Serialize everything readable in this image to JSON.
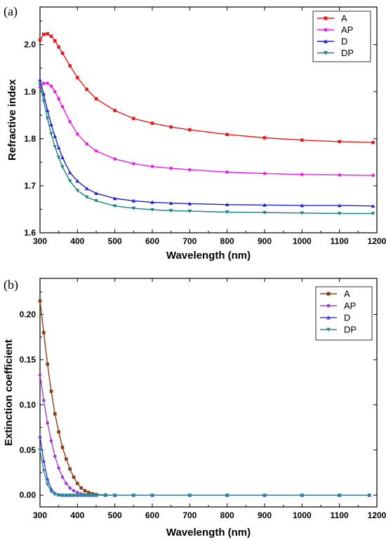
{
  "chart_data": [
    {
      "panel_label": "(a)",
      "type": "line",
      "xlabel": "Wavelength (nm)",
      "ylabel": "Refractive index",
      "xlim": [
        300,
        1200
      ],
      "ylim": [
        1.6,
        2.08
      ],
      "xticks": [
        300,
        400,
        500,
        600,
        700,
        800,
        900,
        1000,
        1100,
        1200
      ],
      "yticks": [
        1.6,
        1.7,
        1.8,
        1.9,
        2.0
      ],
      "yticks_labels": [
        "1.6",
        "1.7",
        "1.8",
        "1.9",
        "2.0"
      ],
      "grid": false,
      "legend_position": "top-right",
      "x": [
        300,
        310,
        320,
        330,
        340,
        350,
        360,
        380,
        400,
        425,
        450,
        500,
        550,
        600,
        650,
        700,
        800,
        900,
        1000,
        1100,
        1190
      ],
      "series": [
        {
          "name": "A",
          "color": "#e8191a",
          "marker": "square",
          "values": [
            2.01,
            2.022,
            2.023,
            2.018,
            2.008,
            1.995,
            1.982,
            1.955,
            1.93,
            1.905,
            1.885,
            1.86,
            1.843,
            1.833,
            1.825,
            1.819,
            1.809,
            1.802,
            1.797,
            1.794,
            1.792
          ]
        },
        {
          "name": "AP",
          "color": "#e81ee8",
          "marker": "circle",
          "values": [
            1.91,
            1.918,
            1.918,
            1.912,
            1.9,
            1.885,
            1.868,
            1.836,
            1.81,
            1.789,
            1.774,
            1.757,
            1.747,
            1.741,
            1.737,
            1.734,
            1.729,
            1.726,
            1.724,
            1.723,
            1.722
          ]
        },
        {
          "name": "D",
          "color": "#1f22c8",
          "marker": "triangle-up",
          "values": [
            1.925,
            1.895,
            1.86,
            1.83,
            1.805,
            1.781,
            1.76,
            1.728,
            1.71,
            1.694,
            1.684,
            1.673,
            1.668,
            1.665,
            1.663,
            1.662,
            1.66,
            1.659,
            1.658,
            1.658,
            1.657
          ]
        },
        {
          "name": "DP",
          "color": "#1a8080",
          "marker": "triangle-down",
          "values": [
            1.915,
            1.88,
            1.843,
            1.81,
            1.783,
            1.76,
            1.74,
            1.71,
            1.69,
            1.676,
            1.668,
            1.657,
            1.652,
            1.649,
            1.647,
            1.646,
            1.644,
            1.643,
            1.642,
            1.641,
            1.641
          ]
        }
      ]
    },
    {
      "panel_label": "(b)",
      "type": "line",
      "xlabel": "Wavelength (nm)",
      "ylabel": "Extinction coefficient",
      "xlim": [
        300,
        1200
      ],
      "ylim": [
        -0.013,
        0.24
      ],
      "xticks": [
        300,
        400,
        500,
        600,
        700,
        800,
        900,
        1000,
        1100,
        1200
      ],
      "yticks": [
        0.0,
        0.05,
        0.1,
        0.15,
        0.2
      ],
      "yticks_labels": [
        "0.00",
        "0.05",
        "0.10",
        "0.15",
        "0.20"
      ],
      "grid": false,
      "legend_position": "top-right",
      "x": [
        300,
        310,
        320,
        330,
        340,
        350,
        360,
        370,
        380,
        390,
        400,
        410,
        420,
        430,
        440,
        450,
        475,
        500,
        550,
        600,
        700,
        800,
        900,
        1000,
        1100,
        1180
      ],
      "series": [
        {
          "name": "A",
          "color": "#8b3a1a",
          "marker": "square",
          "values": [
            0.215,
            0.18,
            0.145,
            0.115,
            0.09,
            0.07,
            0.053,
            0.04,
            0.029,
            0.02,
            0.013,
            0.008,
            0.005,
            0.003,
            0.0015,
            0.0007,
            0.0002,
            0,
            0,
            0,
            0,
            0,
            0,
            0,
            0,
            0
          ]
        },
        {
          "name": "AP",
          "color": "#a23bd6",
          "marker": "circle",
          "values": [
            0.133,
            0.105,
            0.08,
            0.06,
            0.043,
            0.03,
            0.02,
            0.013,
            0.008,
            0.005,
            0.003,
            0.0015,
            0.0008,
            0.0003,
            0.0001,
            0,
            0,
            0,
            0,
            0,
            0,
            0,
            0,
            0,
            0,
            0
          ]
        },
        {
          "name": "D",
          "color": "#3b3be0",
          "marker": "triangle-up",
          "values": [
            0.065,
            0.038,
            0.018,
            0.007,
            0.002,
            0.0005,
            0,
            0,
            0,
            0,
            0,
            0,
            0,
            0,
            0,
            0,
            0,
            0,
            0,
            0,
            0,
            0,
            0,
            0,
            0,
            0
          ]
        },
        {
          "name": "DP",
          "color": "#2a8a96",
          "marker": "triangle-down",
          "values": [
            0.05,
            0.027,
            0.012,
            0.004,
            0.001,
            0.0002,
            0,
            0,
            0,
            0,
            0,
            0,
            0,
            0,
            0,
            0,
            0,
            0,
            0,
            0,
            0,
            0,
            0,
            0,
            0,
            0
          ]
        }
      ]
    }
  ]
}
